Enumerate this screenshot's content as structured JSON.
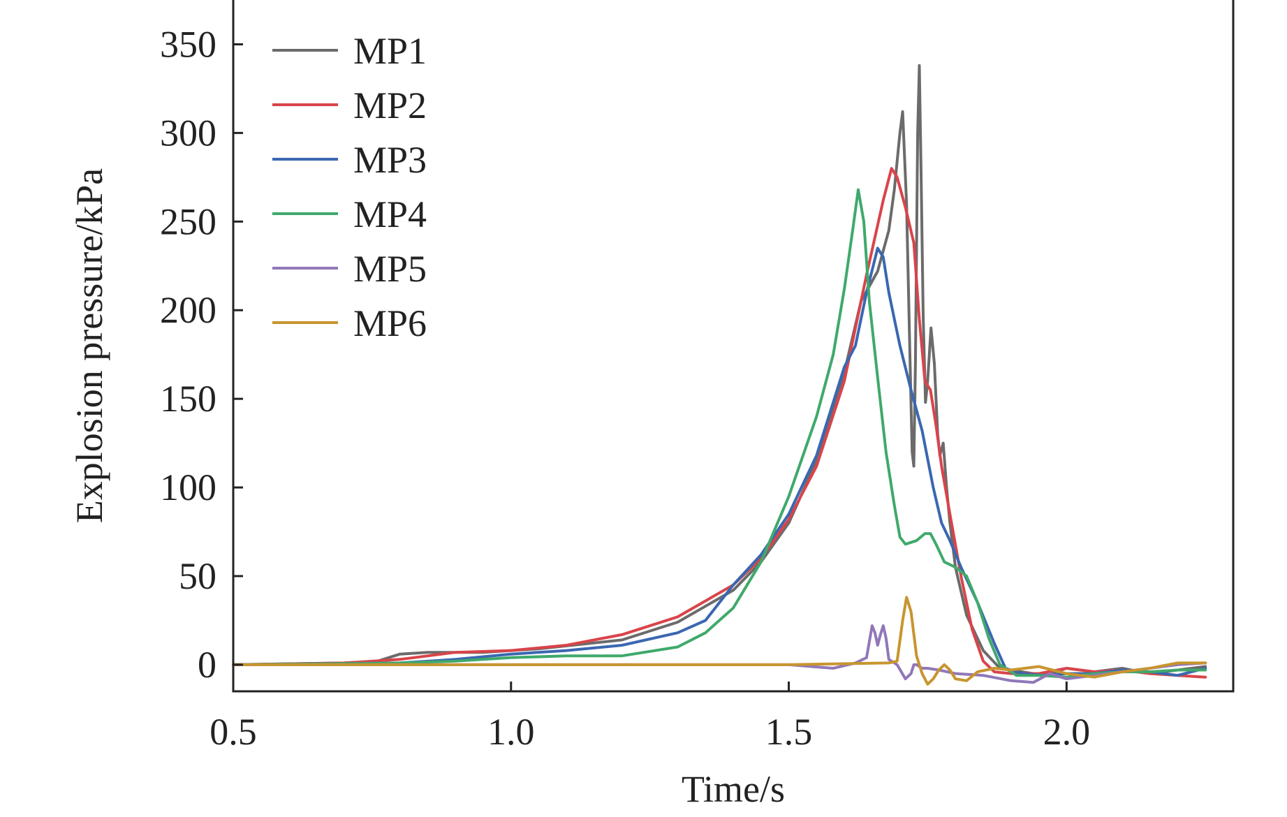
{
  "chart_data": {
    "type": "line",
    "title": "",
    "xlabel": "Time/s",
    "ylabel": "Explosion pressure/kPa",
    "xlim": [
      0.5,
      2.3
    ],
    "ylim": [
      -15,
      375
    ],
    "xticks": [
      0.5,
      1.0,
      1.5,
      2.0
    ],
    "xtick_labels": [
      "0.5",
      "1.0",
      "1.5",
      "2.0"
    ],
    "yticks": [
      0,
      50,
      100,
      150,
      200,
      250,
      300,
      350
    ],
    "ytick_labels": [
      "0",
      "50",
      "100",
      "150",
      "200",
      "250",
      "300",
      "350"
    ],
    "grid": false,
    "legend_position": "top-left",
    "series": [
      {
        "name": "MP1",
        "color": "#6b6b6b",
        "points": [
          [
            0.5,
            0
          ],
          [
            0.7,
            1
          ],
          [
            0.76,
            2
          ],
          [
            0.8,
            6
          ],
          [
            0.85,
            7
          ],
          [
            0.95,
            7
          ],
          [
            1.05,
            9
          ],
          [
            1.2,
            14
          ],
          [
            1.3,
            24
          ],
          [
            1.4,
            42
          ],
          [
            1.45,
            58
          ],
          [
            1.5,
            80
          ],
          [
            1.55,
            115
          ],
          [
            1.6,
            165
          ],
          [
            1.63,
            205
          ],
          [
            1.66,
            222
          ],
          [
            1.68,
            245
          ],
          [
            1.69,
            268
          ],
          [
            1.7,
            300
          ],
          [
            1.705,
            312
          ],
          [
            1.712,
            260
          ],
          [
            1.718,
            175
          ],
          [
            1.722,
            120
          ],
          [
            1.725,
            112
          ],
          [
            1.728,
            170
          ],
          [
            1.732,
            300
          ],
          [
            1.735,
            338
          ],
          [
            1.738,
            280
          ],
          [
            1.742,
            195
          ],
          [
            1.746,
            148
          ],
          [
            1.75,
            160
          ],
          [
            1.756,
            190
          ],
          [
            1.762,
            170
          ],
          [
            1.768,
            130
          ],
          [
            1.772,
            118
          ],
          [
            1.778,
            125
          ],
          [
            1.784,
            100
          ],
          [
            1.79,
            80
          ],
          [
            1.8,
            55
          ],
          [
            1.82,
            28
          ],
          [
            1.85,
            8
          ],
          [
            1.88,
            -2
          ],
          [
            1.92,
            -4
          ],
          [
            1.96,
            -6
          ],
          [
            2.0,
            -2
          ],
          [
            2.05,
            -4
          ],
          [
            2.1,
            -2
          ],
          [
            2.15,
            -5
          ],
          [
            2.2,
            -3
          ],
          [
            2.25,
            -1
          ]
        ]
      },
      {
        "name": "MP2",
        "color": "#d9444a",
        "points": [
          [
            0.5,
            0
          ],
          [
            0.7,
            1
          ],
          [
            0.8,
            3
          ],
          [
            0.9,
            7
          ],
          [
            1.0,
            8
          ],
          [
            1.1,
            11
          ],
          [
            1.2,
            17
          ],
          [
            1.3,
            27
          ],
          [
            1.4,
            45
          ],
          [
            1.45,
            60
          ],
          [
            1.5,
            82
          ],
          [
            1.55,
            112
          ],
          [
            1.6,
            160
          ],
          [
            1.64,
            220
          ],
          [
            1.67,
            262
          ],
          [
            1.685,
            280
          ],
          [
            1.695,
            275
          ],
          [
            1.71,
            258
          ],
          [
            1.725,
            238
          ],
          [
            1.735,
            195
          ],
          [
            1.745,
            160
          ],
          [
            1.755,
            155
          ],
          [
            1.765,
            135
          ],
          [
            1.775,
            112
          ],
          [
            1.79,
            85
          ],
          [
            1.81,
            50
          ],
          [
            1.83,
            20
          ],
          [
            1.85,
            2
          ],
          [
            1.87,
            -4
          ],
          [
            1.9,
            -5
          ],
          [
            1.95,
            -5
          ],
          [
            2.0,
            -2
          ],
          [
            2.05,
            -4
          ],
          [
            2.1,
            -3
          ],
          [
            2.15,
            -5
          ],
          [
            2.2,
            -6
          ],
          [
            2.25,
            -7
          ]
        ]
      },
      {
        "name": "MP3",
        "color": "#3a67b1",
        "points": [
          [
            0.5,
            0
          ],
          [
            0.8,
            1
          ],
          [
            0.9,
            3
          ],
          [
            1.0,
            6
          ],
          [
            1.1,
            8
          ],
          [
            1.2,
            11
          ],
          [
            1.3,
            18
          ],
          [
            1.35,
            25
          ],
          [
            1.4,
            45
          ],
          [
            1.45,
            62
          ],
          [
            1.5,
            85
          ],
          [
            1.55,
            118
          ],
          [
            1.6,
            168
          ],
          [
            1.62,
            180
          ],
          [
            1.64,
            210
          ],
          [
            1.66,
            235
          ],
          [
            1.67,
            230
          ],
          [
            1.68,
            210
          ],
          [
            1.69,
            195
          ],
          [
            1.7,
            180
          ],
          [
            1.72,
            155
          ],
          [
            1.74,
            132
          ],
          [
            1.76,
            100
          ],
          [
            1.775,
            80
          ],
          [
            1.79,
            70
          ],
          [
            1.81,
            55
          ],
          [
            1.84,
            35
          ],
          [
            1.87,
            12
          ],
          [
            1.89,
            -2
          ],
          [
            1.92,
            -5
          ],
          [
            1.96,
            -6
          ],
          [
            2.0,
            -5
          ],
          [
            2.05,
            -5
          ],
          [
            2.1,
            -3
          ],
          [
            2.15,
            -4
          ],
          [
            2.2,
            -6
          ],
          [
            2.25,
            -2
          ]
        ]
      },
      {
        "name": "MP4",
        "color": "#3fa96b",
        "points": [
          [
            0.5,
            0
          ],
          [
            0.8,
            1
          ],
          [
            0.9,
            2
          ],
          [
            1.0,
            4
          ],
          [
            1.1,
            5
          ],
          [
            1.2,
            5
          ],
          [
            1.3,
            10
          ],
          [
            1.35,
            18
          ],
          [
            1.4,
            32
          ],
          [
            1.45,
            58
          ],
          [
            1.5,
            95
          ],
          [
            1.55,
            140
          ],
          [
            1.58,
            175
          ],
          [
            1.6,
            212
          ],
          [
            1.615,
            245
          ],
          [
            1.625,
            268
          ],
          [
            1.635,
            250
          ],
          [
            1.645,
            205
          ],
          [
            1.66,
            162
          ],
          [
            1.675,
            120
          ],
          [
            1.69,
            90
          ],
          [
            1.7,
            72
          ],
          [
            1.71,
            68
          ],
          [
            1.73,
            70
          ],
          [
            1.745,
            74
          ],
          [
            1.755,
            74
          ],
          [
            1.765,
            68
          ],
          [
            1.78,
            58
          ],
          [
            1.8,
            55
          ],
          [
            1.82,
            50
          ],
          [
            1.84,
            35
          ],
          [
            1.86,
            15
          ],
          [
            1.88,
            0
          ],
          [
            1.91,
            -6
          ],
          [
            1.95,
            -6
          ],
          [
            2.0,
            -7
          ],
          [
            2.05,
            -5
          ],
          [
            2.1,
            -4
          ],
          [
            2.15,
            -4
          ],
          [
            2.2,
            -3
          ],
          [
            2.25,
            -3
          ]
        ]
      },
      {
        "name": "MP5",
        "color": "#9177b8",
        "points": [
          [
            0.5,
            0
          ],
          [
            1.5,
            0
          ],
          [
            1.58,
            -2
          ],
          [
            1.62,
            1
          ],
          [
            1.64,
            4
          ],
          [
            1.65,
            22
          ],
          [
            1.655,
            18
          ],
          [
            1.66,
            11
          ],
          [
            1.665,
            17
          ],
          [
            1.67,
            22
          ],
          [
            1.675,
            15
          ],
          [
            1.68,
            3
          ],
          [
            1.695,
            0
          ],
          [
            1.71,
            -8
          ],
          [
            1.72,
            -5
          ],
          [
            1.725,
            0
          ],
          [
            1.73,
            0
          ],
          [
            1.74,
            -2
          ],
          [
            1.75,
            -2
          ],
          [
            1.77,
            -3
          ],
          [
            1.8,
            -5
          ],
          [
            1.85,
            -6
          ],
          [
            1.9,
            -9
          ],
          [
            1.94,
            -10
          ],
          [
            1.97,
            -5
          ],
          [
            2.0,
            -8
          ],
          [
            2.05,
            -6
          ],
          [
            2.1,
            -4
          ],
          [
            2.15,
            -2
          ],
          [
            2.2,
            0
          ],
          [
            2.25,
            1
          ]
        ]
      },
      {
        "name": "MP6",
        "color": "#c8952f",
        "points": [
          [
            0.5,
            0
          ],
          [
            1.5,
            0
          ],
          [
            1.68,
            1
          ],
          [
            1.695,
            2
          ],
          [
            1.705,
            25
          ],
          [
            1.712,
            38
          ],
          [
            1.72,
            30
          ],
          [
            1.73,
            5
          ],
          [
            1.74,
            -5
          ],
          [
            1.75,
            -11
          ],
          [
            1.76,
            -8
          ],
          [
            1.77,
            -3
          ],
          [
            1.78,
            0
          ],
          [
            1.79,
            -3
          ],
          [
            1.8,
            -8
          ],
          [
            1.82,
            -9
          ],
          [
            1.84,
            -4
          ],
          [
            1.87,
            -2
          ],
          [
            1.9,
            -3
          ],
          [
            1.95,
            -1
          ],
          [
            2.0,
            -5
          ],
          [
            2.05,
            -7
          ],
          [
            2.1,
            -4
          ],
          [
            2.15,
            -2
          ],
          [
            2.2,
            1
          ],
          [
            2.25,
            1
          ]
        ]
      }
    ]
  }
}
